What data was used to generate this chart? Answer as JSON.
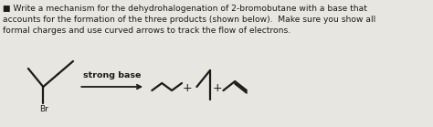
{
  "text_line1": "■ Write a mechanism for the dehydrohalogenation of 2-bromobutane with a base that",
  "text_line2": "accounts for the formation of the three products (shown below).  Make sure you show all",
  "text_line3": "formal charges and use curved arrows to track the flow of electrons.",
  "label_strong_base": "strong base",
  "label_br": "Br",
  "bg_color": "#e8e6e0",
  "text_color": "#1a1a1a",
  "fig_width": 4.74,
  "fig_height": 1.39,
  "dpi": 100
}
